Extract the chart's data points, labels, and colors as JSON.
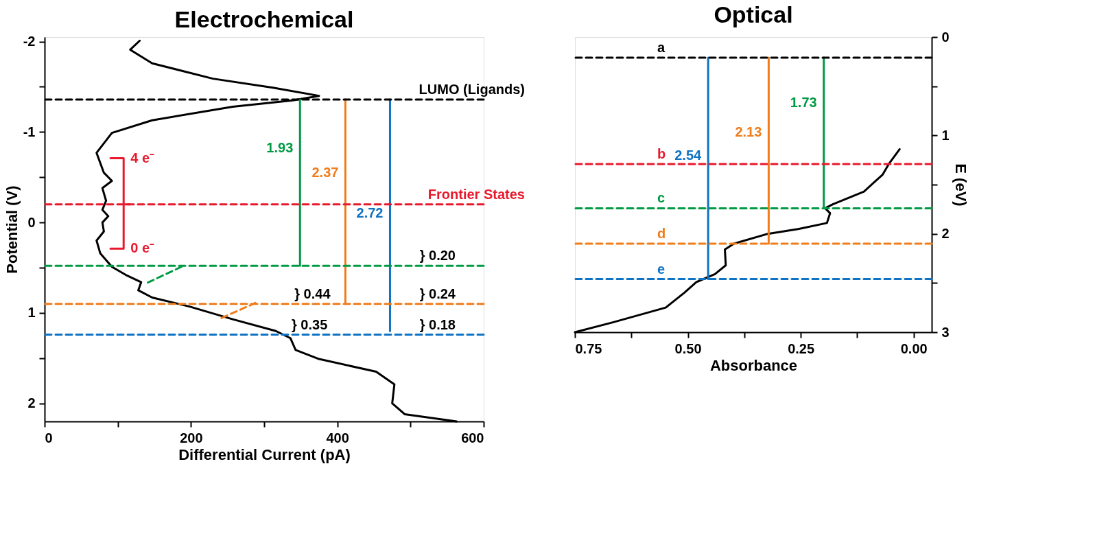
{
  "chart_data": [
    {
      "type": "line",
      "title": "Electrochemical",
      "xlabel": "Differential Current (pA)",
      "ylabel": "Potential (V)",
      "xlim": [
        0,
        600
      ],
      "xticks": [
        0,
        {
          "value": 100,
          "label": null
        },
        200,
        {
          "value": 300,
          "label": null
        },
        400,
        {
          "value": 500,
          "label": null
        },
        600
      ],
      "ylim": [
        2.2,
        -2.05
      ],
      "yticks": [
        -2,
        {
          "value": -1.5,
          "label": null
        },
        -1,
        {
          "value": -0.5,
          "label": null
        },
        0,
        {
          "value": 0.5,
          "label": null
        },
        1,
        {
          "value": 1.5,
          "label": null
        },
        2
      ],
      "series": [
        {
          "color": "#000000",
          "x": [
            130,
            117,
            147,
            230,
            312,
            375,
            339,
            257,
            147,
            92,
            71,
            81,
            92,
            79,
            84,
            79,
            87,
            79,
            81,
            71,
            76,
            92,
            111,
            132,
            128,
            147,
            198,
            257,
            316,
            336,
            343,
            375,
            453,
            478,
            475,
            492,
            563
          ],
          "values": [
            -2.01,
            -1.91,
            -1.76,
            -1.59,
            -1.49,
            -1.4,
            -1.35,
            -1.28,
            -1.13,
            -0.99,
            -0.77,
            -0.55,
            -0.46,
            -0.38,
            -0.24,
            -0.14,
            -0.07,
            0.0,
            0.1,
            0.2,
            0.34,
            0.49,
            0.58,
            0.66,
            0.75,
            0.83,
            0.93,
            1.07,
            1.2,
            1.28,
            1.41,
            1.51,
            1.65,
            1.79,
            2.0,
            2.12,
            2.2
          ]
        },
        {
          "color": "#e8192c",
          "x": [
            90,
            108,
            108,
            116,
            108,
            108,
            90
          ],
          "values": [
            -0.71,
            -0.71,
            -0.2,
            -0.2,
            -0.2,
            0.29,
            0.29
          ]
        },
        {
          "color": "#009a44",
          "x": [
            349,
            349
          ],
          "values": [
            -1.36,
            0.48
          ]
        },
        {
          "color": "#f07c1a",
          "x": [
            411,
            411
          ],
          "values": [
            -1.36,
            0.9
          ]
        },
        {
          "color": "#0f72c3",
          "x": [
            472,
            472
          ],
          "values": [
            -1.36,
            1.2
          ]
        },
        {
          "color": "#009a44",
          "line_style": "dashed",
          "x": [
            187,
            137
          ],
          "values": [
            0.49,
            0.68
          ]
        },
        {
          "color": "#f07c1a",
          "line_style": "dashed",
          "x": [
            288,
            238
          ],
          "values": [
            0.89,
            1.07
          ]
        }
      ],
      "ref_lines": [
        {
          "axis": "y",
          "value": -1.36,
          "color": "#000000",
          "line_style": "dashed",
          "label": "LUMO (Ligands)"
        },
        {
          "axis": "y",
          "value": -0.2,
          "color": "#e8192c",
          "line_style": "dashed",
          "label": "Frontier States"
        },
        {
          "axis": "y",
          "value": 0.48,
          "color": "#009a44",
          "line_style": "dashed"
        },
        {
          "axis": "y",
          "value": 0.9,
          "color": "#f07c1a",
          "line_style": "dashed"
        },
        {
          "axis": "y",
          "value": 1.24,
          "color": "#0f72c3",
          "line_style": "dashed"
        }
      ],
      "annotations": [
        {
          "text": "4 e⁻",
          "x": 108,
          "y": -0.71
        },
        {
          "text": "0 e⁻",
          "x": 108,
          "y": 0.29
        },
        {
          "text": "1.93",
          "x": 349,
          "y": -0.82
        },
        {
          "text": "2.37",
          "x": 411,
          "y": -0.55
        },
        {
          "text": "2.72",
          "x": 472,
          "y": -0.1
        },
        {
          "text": "} 0.44",
          "x": 366,
          "y": 0.9
        },
        {
          "text": "} 0.35",
          "x": 362,
          "y": 1.24
        },
        {
          "text": "} 0.20",
          "x": 537,
          "y": 0.48
        },
        {
          "text": "} 0.24",
          "x": 537,
          "y": 0.9
        },
        {
          "text": "} 0.18",
          "x": 537,
          "y": 1.24
        }
      ]
    },
    {
      "type": "line",
      "title": "Optical",
      "xlabel": "Absorbance",
      "ylabel": "E (eV)",
      "xlim": [
        0.75,
        -0.04
      ],
      "xticks": [
        {
          "value": 0.75,
          "label": "0.75"
        },
        {
          "value": 0.625,
          "label": null
        },
        {
          "value": 0.5,
          "label": "0.50"
        },
        {
          "value": 0.375,
          "label": null
        },
        {
          "value": 0.25,
          "label": "0.25"
        },
        {
          "value": 0.125,
          "label": null
        },
        {
          "value": 0,
          "label": "0.00"
        }
      ],
      "ylim": [
        3,
        0
      ],
      "yticks": [
        0,
        {
          "value": 0.5,
          "label": null
        },
        1,
        {
          "value": 1.5,
          "label": null
        },
        2,
        {
          "value": 2.5,
          "label": null
        },
        3
      ],
      "series": [
        {
          "color": "#000000",
          "x": [
            0.75,
            0.666,
            0.549,
            0.508,
            0.481,
            0.44,
            0.416,
            0.418,
            0.398,
            0.323,
            0.254,
            0.192,
            0.185,
            0.196,
            0.179,
            0.11,
            0.069,
            0.055,
            0.031
          ],
          "values": [
            3.0,
            2.9,
            2.75,
            2.6,
            2.49,
            2.41,
            2.32,
            2.16,
            2.1,
            2.0,
            1.95,
            1.89,
            1.79,
            1.74,
            1.7,
            1.57,
            1.4,
            1.29,
            1.14
          ]
        },
        {
          "color": "#0f72c3",
          "x": [
            0.455,
            0.455
          ],
          "values": [
            2.46,
            0.21
          ]
        },
        {
          "color": "#f07c1a",
          "x": [
            0.321,
            0.321
          ],
          "values": [
            2.1,
            0.21
          ]
        },
        {
          "color": "#009a44",
          "x": [
            0.199,
            0.199
          ],
          "values": [
            1.74,
            0.21
          ]
        }
      ],
      "ref_lines": [
        {
          "axis": "y",
          "value": 0.21,
          "color": "#000000",
          "line_style": "dashed",
          "label": "a"
        },
        {
          "axis": "y",
          "value": 1.29,
          "color": "#e8192c",
          "line_style": "dashed",
          "label": "b"
        },
        {
          "axis": "y",
          "value": 1.74,
          "color": "#009a44",
          "line_style": "dashed",
          "label": "c"
        },
        {
          "axis": "y",
          "value": 2.1,
          "color": "#f07c1a",
          "line_style": "dashed",
          "label": "d"
        },
        {
          "axis": "y",
          "value": 2.46,
          "color": "#0f72c3",
          "line_style": "dashed",
          "label": "e"
        }
      ],
      "annotations": [
        {
          "text": "2.54",
          "x": 0.455,
          "y": 1.21
        },
        {
          "text": "2.13",
          "x": 0.321,
          "y": 0.97
        },
        {
          "text": "1.73",
          "x": 0.199,
          "y": 0.67
        }
      ]
    }
  ]
}
